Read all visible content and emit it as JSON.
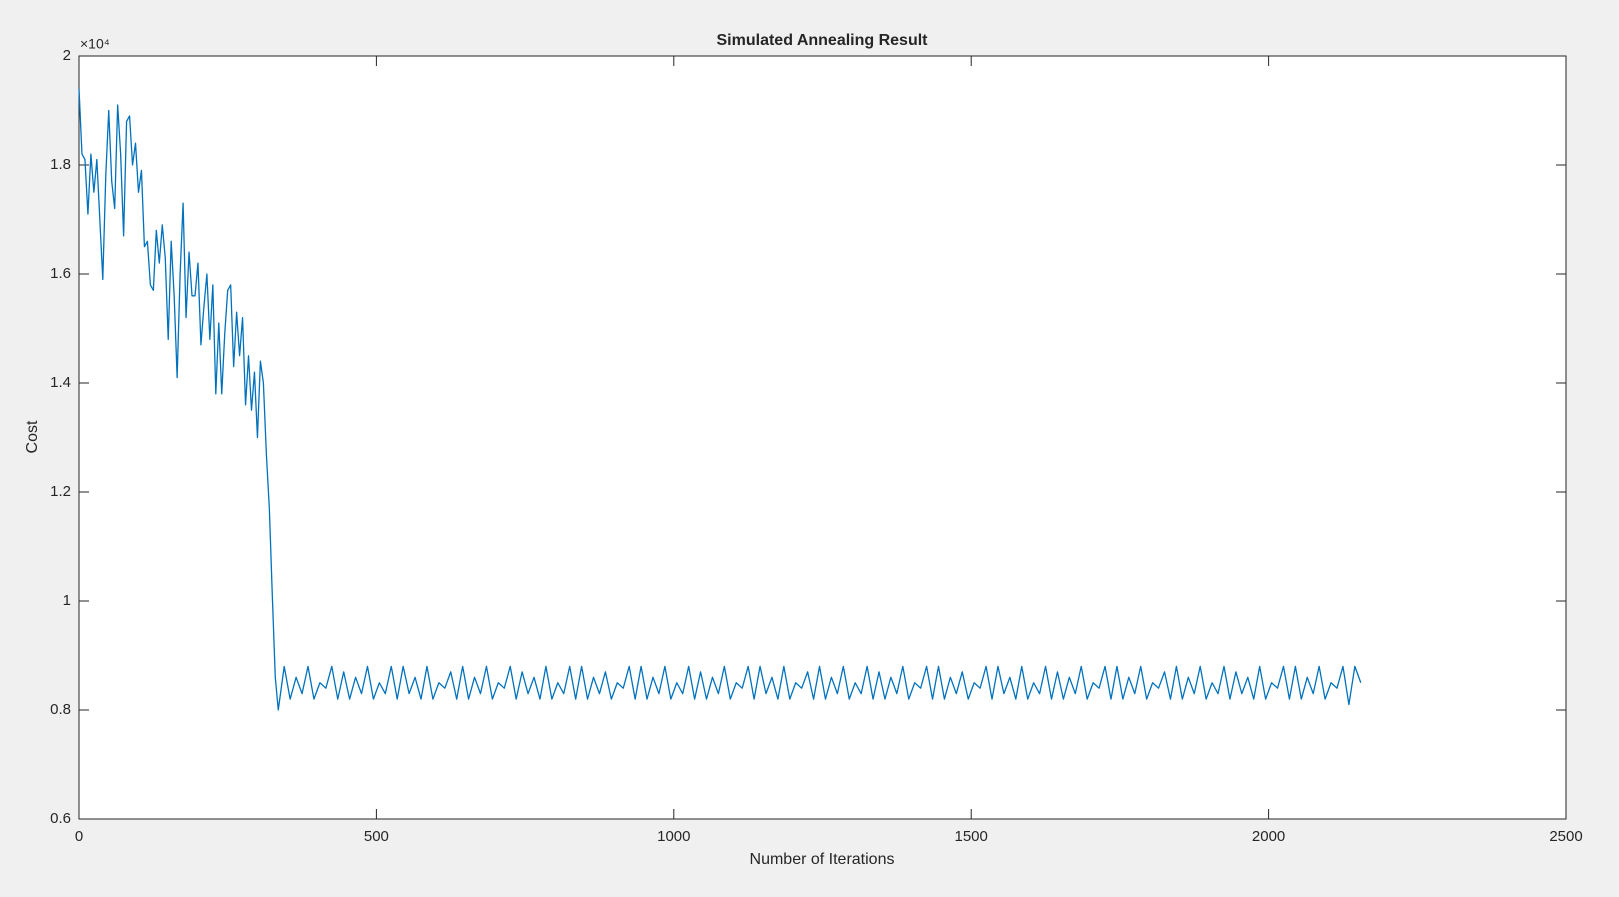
{
  "chart_data": {
    "type": "line",
    "title": "Simulated Annealing Result",
    "x_label": "Number of Iterations",
    "y_label": "Cost",
    "y_multiplier": "×10⁴",
    "color": "#0072bd",
    "xlim": [
      0,
      2500
    ],
    "xticks": [
      0,
      500,
      1000,
      1500,
      2000,
      2500
    ],
    "ylim": [
      0.6,
      2
    ],
    "yticks": [
      0.6,
      0.8,
      1,
      1.2,
      1.4,
      1.6,
      1.8,
      2
    ],
    "grid": false,
    "x": [
      0,
      5,
      10,
      15,
      20,
      25,
      30,
      35,
      40,
      45,
      50,
      55,
      60,
      65,
      70,
      75,
      80,
      85,
      90,
      95,
      100,
      105,
      110,
      115,
      120,
      125,
      130,
      135,
      140,
      145,
      150,
      155,
      160,
      165,
      170,
      175,
      180,
      185,
      190,
      195,
      200,
      205,
      210,
      215,
      220,
      225,
      230,
      235,
      240,
      245,
      250,
      255,
      260,
      265,
      270,
      275,
      280,
      285,
      290,
      295,
      300,
      305,
      310,
      315,
      320,
      325,
      330,
      335,
      345,
      355,
      365,
      375,
      385,
      395,
      405,
      415,
      425,
      435,
      445,
      455,
      465,
      475,
      485,
      495,
      505,
      515,
      525,
      535,
      545,
      555,
      565,
      575,
      585,
      595,
      605,
      615,
      625,
      635,
      645,
      655,
      665,
      675,
      685,
      695,
      705,
      715,
      725,
      735,
      745,
      755,
      765,
      775,
      785,
      795,
      805,
      815,
      825,
      835,
      845,
      855,
      865,
      875,
      885,
      895,
      905,
      915,
      925,
      935,
      945,
      955,
      965,
      975,
      985,
      995,
      1005,
      1015,
      1025,
      1035,
      1045,
      1055,
      1065,
      1075,
      1085,
      1095,
      1105,
      1115,
      1125,
      1135,
      1145,
      1155,
      1165,
      1175,
      1185,
      1195,
      1205,
      1215,
      1225,
      1235,
      1245,
      1255,
      1265,
      1275,
      1285,
      1295,
      1305,
      1315,
      1325,
      1335,
      1345,
      1355,
      1365,
      1375,
      1385,
      1395,
      1405,
      1415,
      1425,
      1435,
      1445,
      1455,
      1465,
      1475,
      1485,
      1495,
      1505,
      1515,
      1525,
      1535,
      1545,
      1555,
      1565,
      1575,
      1585,
      1595,
      1605,
      1615,
      1625,
      1635,
      1645,
      1655,
      1665,
      1675,
      1685,
      1695,
      1705,
      1715,
      1725,
      1735,
      1745,
      1755,
      1765,
      1775,
      1785,
      1795,
      1805,
      1815,
      1825,
      1835,
      1845,
      1855,
      1865,
      1875,
      1885,
      1895,
      1905,
      1915,
      1925,
      1935,
      1945,
      1955,
      1965,
      1975,
      1985,
      1995,
      2005,
      2015,
      2025,
      2035,
      2045,
      2055,
      2065,
      2075,
      2085,
      2095,
      2105,
      2115,
      2125,
      2135,
      2145,
      2155
    ],
    "values": [
      1.94,
      1.82,
      1.81,
      1.71,
      1.82,
      1.75,
      1.81,
      1.7,
      1.59,
      1.78,
      1.9,
      1.77,
      1.72,
      1.91,
      1.82,
      1.67,
      1.88,
      1.89,
      1.8,
      1.84,
      1.75,
      1.79,
      1.65,
      1.66,
      1.58,
      1.57,
      1.68,
      1.62,
      1.69,
      1.63,
      1.48,
      1.66,
      1.56,
      1.41,
      1.6,
      1.73,
      1.52,
      1.64,
      1.56,
      1.56,
      1.62,
      1.47,
      1.54,
      1.6,
      1.48,
      1.58,
      1.38,
      1.51,
      1.38,
      1.49,
      1.57,
      1.58,
      1.43,
      1.53,
      1.45,
      1.52,
      1.36,
      1.45,
      1.35,
      1.42,
      1.3,
      1.44,
      1.4,
      1.27,
      1.17,
      1.01,
      0.86,
      0.8,
      0.88,
      0.82,
      0.86,
      0.83,
      0.88,
      0.82,
      0.85,
      0.84,
      0.88,
      0.82,
      0.87,
      0.82,
      0.86,
      0.83,
      0.88,
      0.82,
      0.85,
      0.83,
      0.88,
      0.82,
      0.88,
      0.83,
      0.86,
      0.82,
      0.88,
      0.82,
      0.85,
      0.84,
      0.87,
      0.82,
      0.88,
      0.82,
      0.86,
      0.83,
      0.88,
      0.82,
      0.85,
      0.84,
      0.88,
      0.82,
      0.87,
      0.83,
      0.86,
      0.82,
      0.88,
      0.82,
      0.85,
      0.83,
      0.88,
      0.82,
      0.88,
      0.82,
      0.86,
      0.83,
      0.87,
      0.82,
      0.85,
      0.84,
      0.88,
      0.82,
      0.88,
      0.82,
      0.86,
      0.83,
      0.88,
      0.82,
      0.85,
      0.83,
      0.88,
      0.82,
      0.87,
      0.82,
      0.86,
      0.83,
      0.88,
      0.82,
      0.85,
      0.84,
      0.88,
      0.82,
      0.88,
      0.83,
      0.86,
      0.82,
      0.88,
      0.82,
      0.85,
      0.84,
      0.87,
      0.82,
      0.88,
      0.82,
      0.86,
      0.83,
      0.88,
      0.82,
      0.85,
      0.83,
      0.88,
      0.82,
      0.87,
      0.82,
      0.86,
      0.83,
      0.88,
      0.82,
      0.85,
      0.84,
      0.88,
      0.82,
      0.88,
      0.82,
      0.86,
      0.83,
      0.87,
      0.82,
      0.85,
      0.84,
      0.88,
      0.82,
      0.88,
      0.83,
      0.86,
      0.82,
      0.88,
      0.82,
      0.85,
      0.83,
      0.88,
      0.82,
      0.87,
      0.82,
      0.86,
      0.83,
      0.88,
      0.82,
      0.85,
      0.84,
      0.88,
      0.82,
      0.88,
      0.82,
      0.86,
      0.83,
      0.88,
      0.82,
      0.85,
      0.84,
      0.87,
      0.82,
      0.88,
      0.82,
      0.86,
      0.83,
      0.88,
      0.82,
      0.85,
      0.83,
      0.88,
      0.82,
      0.87,
      0.83,
      0.86,
      0.82,
      0.88,
      0.82,
      0.85,
      0.84,
      0.88,
      0.82,
      0.88,
      0.82,
      0.86,
      0.83,
      0.88,
      0.82,
      0.85,
      0.84,
      0.88,
      0.81,
      0.88,
      0.85
    ]
  }
}
